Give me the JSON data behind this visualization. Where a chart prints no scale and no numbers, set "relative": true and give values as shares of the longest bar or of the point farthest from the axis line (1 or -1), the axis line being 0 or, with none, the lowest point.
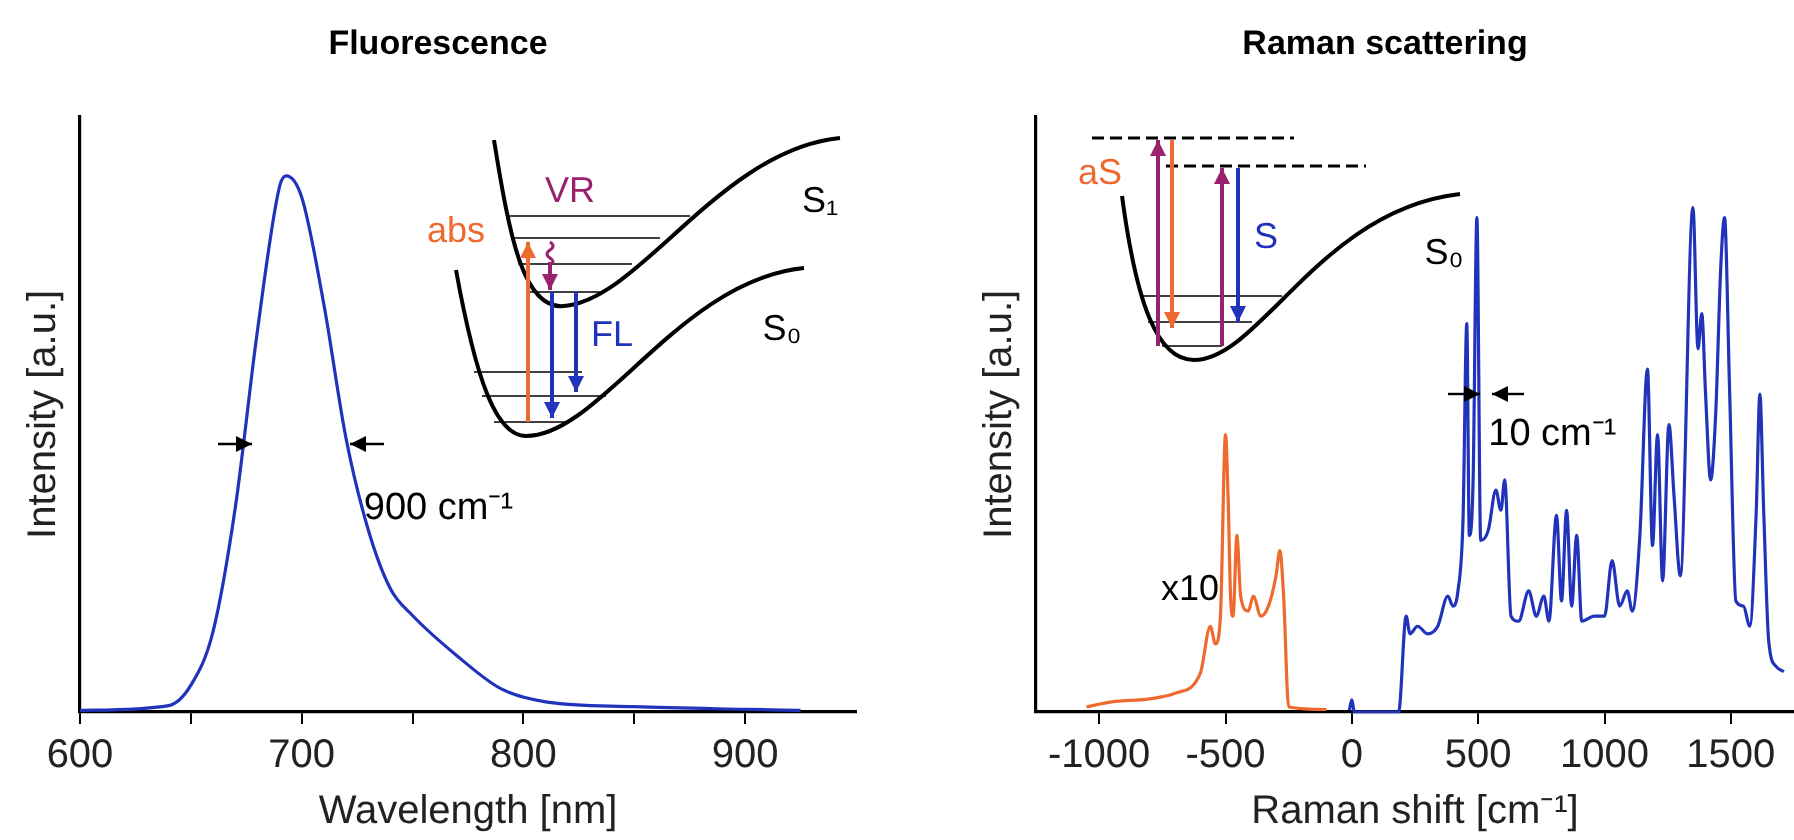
{
  "chart_data": [
    {
      "type": "line",
      "title": "Fluorescence",
      "xlabel": "Wavelength [nm]",
      "ylabel": "Intensity [a.u.]",
      "relative": true,
      "xlim": [
        600,
        950
      ],
      "xticks": [
        600,
        700,
        800,
        900,
        {
          "value": 650,
          "label": null
        },
        {
          "value": 750,
          "label": null
        },
        {
          "value": 850,
          "label": null
        }
      ],
      "grid": false,
      "legend": false,
      "marker": "none",
      "line_style": "solid",
      "series": [
        {
          "color": "#2233bb",
          "x": [
            600,
            640,
            650,
            660,
            670,
            680,
            690,
            693,
            700,
            710,
            720,
            730,
            740,
            750,
            770,
            790,
            810,
            850,
            900,
            925
          ],
          "values": [
            0.003,
            0.012,
            0.05,
            0.15,
            0.38,
            0.71,
            0.98,
            1.0,
            0.96,
            0.76,
            0.51,
            0.34,
            0.23,
            0.18,
            0.105,
            0.043,
            0.019,
            0.01,
            0.005,
            0.003
          ]
        }
      ],
      "annotations": [
        "abs",
        "VR",
        "S₁",
        "FL",
        "S₀",
        {
          "text": "900 cm⁻¹",
          "x": 728,
          "y": 0.38
        }
      ]
    },
    {
      "type": "line",
      "title": "Raman scattering",
      "xlabel": "Raman shift [cm⁻¹]",
      "ylabel": "Intensity [a.u.]",
      "relative": true,
      "xlim": [
        -1250,
        1750
      ],
      "xticks": [
        -1000,
        -500,
        0,
        500,
        1000,
        1500
      ],
      "grid": false,
      "legend": false,
      "marker": "none",
      "line_style": "solid",
      "series": [
        {
          "color": "#ee6a2e",
          "x": [
            -1050,
            -950,
            -800,
            -700,
            -600,
            -560,
            -540,
            -520,
            -500,
            -490,
            -480,
            -470,
            -455,
            -440,
            -410,
            -390,
            -360,
            -330,
            -300,
            -285,
            -270,
            -250,
            -100
          ],
          "values": [
            0.01,
            0.02,
            0.026,
            0.037,
            0.076,
            0.17,
            0.135,
            0.19,
            0.55,
            0.43,
            0.23,
            0.19,
            0.35,
            0.23,
            0.2,
            0.23,
            0.19,
            0.21,
            0.27,
            0.32,
            0.23,
            0.01,
            0.005
          ]
        },
        {
          "color": "#2233bb",
          "x": [
            -10,
            0,
            10,
            185,
            215,
            230,
            260,
            300,
            340,
            380,
            400,
            420,
            440,
            455,
            465,
            480,
            495,
            510,
            540,
            570,
            590,
            605,
            630,
            660,
            700,
            730,
            760,
            780,
            810,
            830,
            850,
            870,
            890,
            910,
            960,
            1000,
            1030,
            1060,
            1090,
            1110,
            1140,
            1170,
            1190,
            1210,
            1230,
            1255,
            1275,
            1300,
            1350,
            1370,
            1385,
            1400,
            1420,
            1440,
            1460,
            1475,
            1495,
            1520,
            1550,
            1575,
            1600,
            1615,
            1630,
            1650,
            1680,
            1710
          ],
          "values": [
            0.003,
            0.024,
            0.0,
            0.0,
            0.19,
            0.155,
            0.17,
            0.155,
            0.17,
            0.23,
            0.21,
            0.24,
            0.38,
            0.77,
            0.35,
            0.46,
            0.98,
            0.34,
            0.36,
            0.44,
            0.4,
            0.46,
            0.19,
            0.18,
            0.24,
            0.19,
            0.23,
            0.18,
            0.39,
            0.22,
            0.4,
            0.21,
            0.35,
            0.18,
            0.19,
            0.19,
            0.3,
            0.21,
            0.24,
            0.2,
            0.35,
            0.68,
            0.33,
            0.55,
            0.26,
            0.57,
            0.43,
            0.27,
            1.0,
            0.72,
            0.79,
            0.63,
            0.46,
            0.59,
            0.88,
            0.98,
            0.64,
            0.22,
            0.21,
            0.17,
            0.39,
            0.63,
            0.4,
            0.14,
            0.09,
            0.08
          ]
        }
      ],
      "annotations": [
        "aS",
        "S",
        "S₀",
        "x10",
        {
          "text": "10 cm⁻¹",
          "x": 540,
          "y": 0.55
        }
      ]
    }
  ]
}
